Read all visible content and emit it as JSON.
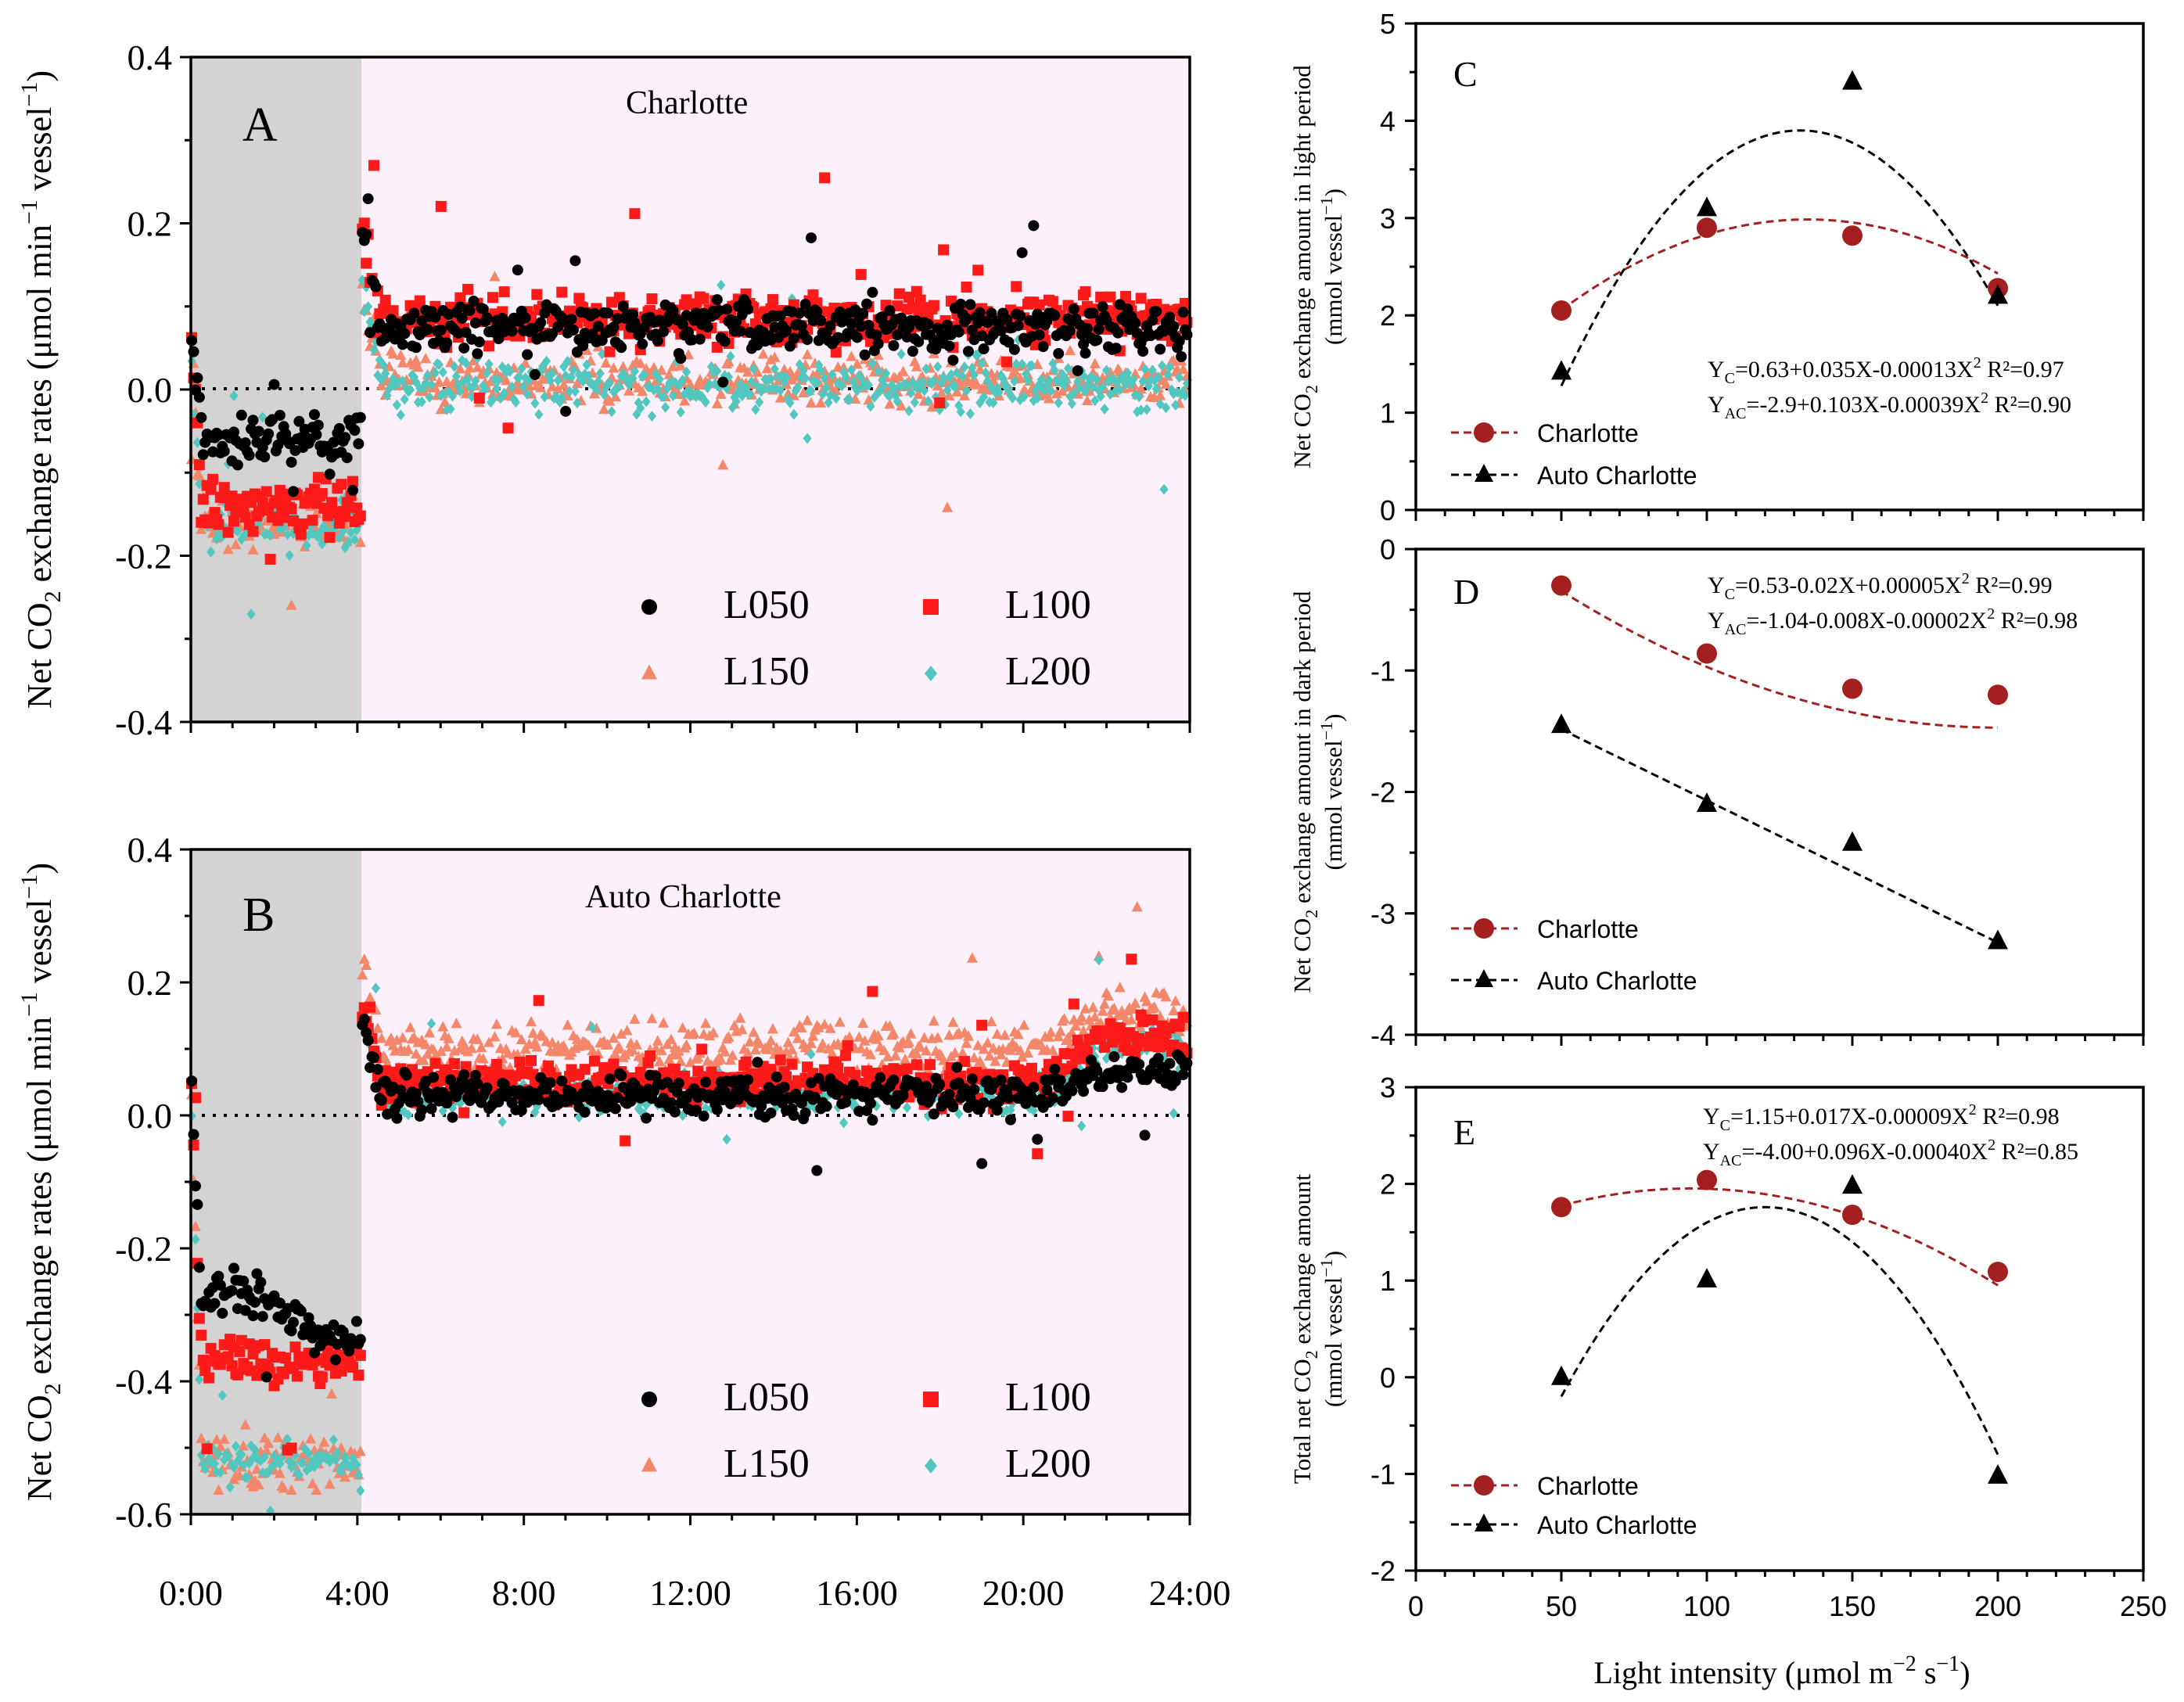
{
  "colors": {
    "L050": "#000000",
    "L100": "#ff1a1a",
    "L150": "#f4876a",
    "L200": "#52c7c0",
    "dark_shade": "#d3d3d3",
    "light_shade": "#fcf0fa",
    "charlotte": "#a41f1f",
    "auto": "#000000"
  },
  "x_tick_labels": [
    "0:00",
    "4:00",
    "8:00",
    "12:00",
    "16:00",
    "20:00",
    "24:00"
  ],
  "shared_ylabel_top": "Net CO",
  "shared_ylabel_rest": " exchange rates (μmol min",
  "shared_ylabel_end": " vessel",
  "shared_xlabel_left": "",
  "shared_xlabel_right": "Light intensity (μmol m",
  "chart_data": [
    {
      "panel": "A",
      "type": "scatter",
      "title": "Charlotte",
      "x_range": [
        0,
        24
      ],
      "ylim": [
        -0.4,
        0.4
      ],
      "y_ticks": [
        "0.4",
        "0.2",
        "0.0",
        "-0.2",
        "-0.4"
      ],
      "dark_period_hours": [
        0,
        4.1
      ],
      "ylabel": "Net CO2 exchange rates (μmol min−1 vessel−1)",
      "legend": [
        "L050",
        "L100",
        "L150",
        "L200"
      ],
      "series": [
        {
          "name": "L050",
          "marker": "circle",
          "dark_level": -0.06,
          "light_level": 0.075,
          "noise": 0.03
        },
        {
          "name": "L100",
          "marker": "square",
          "dark_level": -0.14,
          "light_level": 0.085,
          "noise": 0.03
        },
        {
          "name": "L150",
          "marker": "triangle",
          "dark_level": -0.16,
          "light_level": 0.01,
          "noise": 0.03
        },
        {
          "name": "L200",
          "marker": "diamond",
          "dark_level": -0.165,
          "light_level": 0.005,
          "noise": 0.03
        }
      ]
    },
    {
      "panel": "B",
      "type": "scatter",
      "title": "Auto Charlotte",
      "x_range": [
        0,
        24
      ],
      "ylim": [
        -0.6,
        0.4
      ],
      "y_ticks": [
        "0.4",
        "0.2",
        "0.0",
        "-0.2",
        "-0.4",
        "-0.6"
      ],
      "dark_period_hours": [
        0,
        4.1
      ],
      "ylabel": "Net CO2 exchange rates (μmol min−1 vessel−1)",
      "legend": [
        "L050",
        "L100",
        "L150",
        "L200"
      ],
      "series": [
        {
          "name": "L050",
          "marker": "circle",
          "dark_level": -0.3,
          "light_level": 0.03,
          "end_level": 0.07,
          "noise": 0.03
        },
        {
          "name": "L100",
          "marker": "square",
          "dark_level": -0.37,
          "light_level": 0.05,
          "end_level": 0.12,
          "noise": 0.03
        },
        {
          "name": "L150",
          "marker": "triangle",
          "dark_level": -0.52,
          "light_level": 0.1,
          "end_level": 0.16,
          "noise": 0.04
        },
        {
          "name": "L200",
          "marker": "diamond",
          "dark_level": -0.52,
          "light_level": 0.03,
          "end_level": 0.1,
          "noise": 0.03
        }
      ]
    },
    {
      "panel": "C",
      "type": "line",
      "xlim": [
        0,
        250
      ],
      "ylim": [
        0,
        5
      ],
      "y_ticks": [
        "5",
        "4",
        "3",
        "2",
        "1",
        "0"
      ],
      "ylabel_main": "Net CO2 exchange amount in light period",
      "ylabel_unit": "(mmol vessel−1)",
      "x": [
        50,
        100,
        150,
        200
      ],
      "series": [
        {
          "name": "Charlotte",
          "values": [
            2.05,
            2.9,
            2.82,
            2.28
          ],
          "fit": [
            0.63,
            0.035,
            -0.00013
          ]
        },
        {
          "name": "Auto Charlotte",
          "values": [
            1.42,
            3.1,
            4.4,
            2.2
          ],
          "fit": [
            -2.9,
            0.103,
            -0.00039
          ]
        }
      ],
      "eq_c": {
        "lhs": "Y",
        "sub": "C",
        "body": "=0.63+0.035X-0.00013X",
        "sup": "2",
        "r2": "  R²=0.97"
      },
      "eq_ac": {
        "lhs": "Y",
        "sub": "AC",
        "body": "=-2.9+0.103X-0.00039X",
        "sup": "2",
        "r2": "  R²=0.90"
      }
    },
    {
      "panel": "D",
      "type": "line",
      "xlim": [
        0,
        250
      ],
      "ylim": [
        -4,
        0
      ],
      "y_ticks": [
        "0",
        "-1",
        "-2",
        "-3",
        "-4"
      ],
      "ylabel_main": "Net CO2 exchange amount in dark period",
      "ylabel_unit": "(mmol vessel−1)",
      "x": [
        50,
        100,
        150,
        200
      ],
      "series": [
        {
          "name": "Charlotte",
          "values": [
            -0.3,
            -0.86,
            -1.15,
            -1.2
          ],
          "fit": [
            0.53,
            -0.02,
            5e-05
          ]
        },
        {
          "name": "Auto Charlotte",
          "values": [
            -1.45,
            -2.1,
            -2.42,
            -3.23
          ],
          "linear": [
            -0.9,
            -0.0117
          ]
        }
      ],
      "eq_c": {
        "lhs": "Y",
        "sub": "C",
        "body": "=0.53-0.02X+0.00005X",
        "sup": "2",
        "r2": "  R²=0.99"
      },
      "eq_ac": {
        "lhs": "Y",
        "sub": "AC",
        "body": "=-1.04-0.008X-0.00002X",
        "sup": "2",
        "r2": "  R²=0.98"
      }
    },
    {
      "panel": "E",
      "type": "line",
      "xlim": [
        0,
        250
      ],
      "ylim": [
        -2,
        3
      ],
      "x_ticks": [
        "0",
        "50",
        "100",
        "150",
        "200",
        "250"
      ],
      "y_ticks": [
        "3",
        "2",
        "1",
        "0",
        "-1",
        "-2"
      ],
      "ylabel_main": "Total net CO2 exchange amount",
      "ylabel_unit": "(mmol vessel−1)",
      "xlabel": "Light intensity (μmol m−2 s−1)",
      "x": [
        50,
        100,
        150,
        200
      ],
      "series": [
        {
          "name": "Charlotte",
          "values": [
            1.76,
            2.04,
            1.68,
            1.09
          ],
          "fit": [
            1.15,
            0.017,
            -9e-05
          ]
        },
        {
          "name": "Auto Charlotte",
          "values": [
            0.0,
            1.01,
            1.98,
            -1.02
          ],
          "fit": [
            -4.0,
            0.096,
            -0.0004
          ]
        }
      ],
      "eq_c": {
        "lhs": "Y",
        "sub": "C",
        "body": "=1.15+0.017X-0.00009X",
        "sup": "2",
        "r2": "  R²=0.98"
      },
      "eq_ac": {
        "lhs": "Y",
        "sub": "AC",
        "body": "=-4.00+0.096X-0.00040X",
        "sup": "2",
        "r2": "  R²=0.85"
      }
    }
  ]
}
